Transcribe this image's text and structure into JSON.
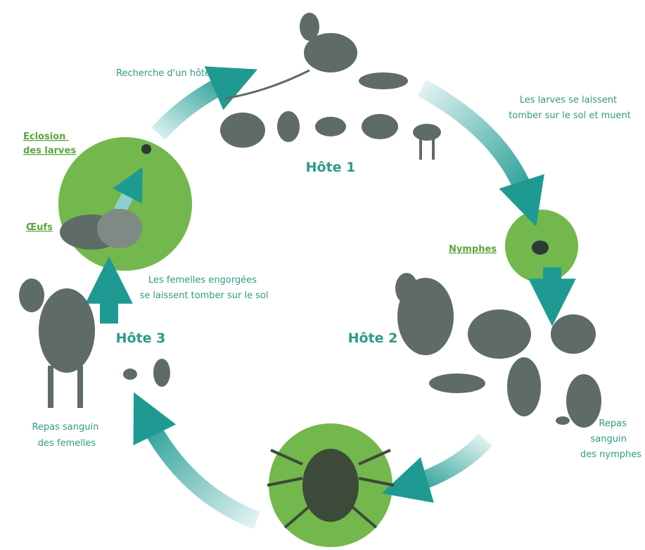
{
  "diagram": {
    "host_search": "Recherche d'un hôte",
    "larvae_drop": [
      "Les larves se laissent",
      "tomber sur le sol et muent"
    ],
    "hosts": [
      "Hôte 1",
      "Hôte 2",
      "Hôte 3"
    ],
    "hatching": [
      "Eclosion",
      "des larves"
    ],
    "eggs": "Œufs",
    "nymphs": "Nymphes",
    "females_drop": [
      "Les femelles engorgées",
      "se laissent tomber sur le sol"
    ],
    "female_meal": [
      "Repas sanguin",
      "des femelles"
    ],
    "nymph_meal": [
      "Repas",
      "sanguin",
      "des nymphes"
    ]
  }
}
